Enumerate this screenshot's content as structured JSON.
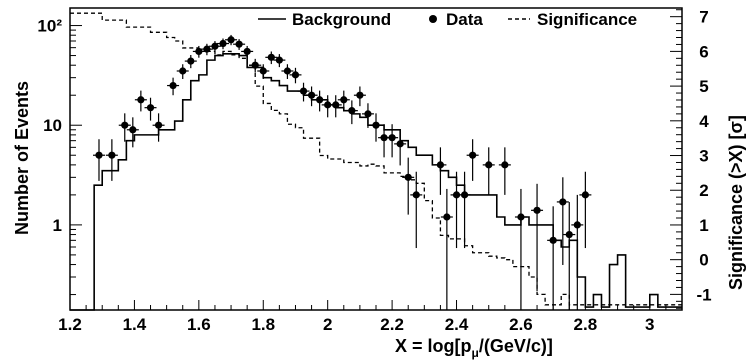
{
  "chart_data": {
    "type": "histogram",
    "title": "",
    "xlabel": "X = log[p",
    "xlabel_sub": "μ",
    "xlabel_tail": "/(GeV/c)]",
    "ylabel": "Number of Events",
    "ylabel_right": "Significance (>X) [σ]",
    "x_axis": {
      "min": 1.2,
      "max": 3.1,
      "ticks": [
        1.2,
        1.4,
        1.6,
        1.8,
        2,
        2.2,
        2.4,
        2.6,
        2.8,
        3
      ],
      "tick_labels": [
        "1.2",
        "1.4",
        "1.6",
        "1.8",
        "2",
        "2.2",
        "2.4",
        "2.6",
        "2.8",
        "3"
      ]
    },
    "y_axis": {
      "scale": "log",
      "min": 0.14,
      "max": 150,
      "ticks": [
        1,
        10,
        100
      ],
      "tick_labels": [
        "1",
        "10",
        "10²"
      ]
    },
    "y_axis_right": {
      "min": -1.45,
      "max": 7.25,
      "ticks": [
        -1,
        0,
        1,
        2,
        3,
        4,
        5,
        6,
        7
      ],
      "tick_labels": [
        "-1",
        "0",
        "1",
        "2",
        "3",
        "4",
        "5",
        "6",
        "7"
      ]
    },
    "legend": {
      "placement": "top-right",
      "entries": [
        {
          "label": "Background",
          "style": "solid-line"
        },
        {
          "label": "Data",
          "style": "marker"
        },
        {
          "label": "Significance",
          "style": "dashed-line"
        }
      ]
    },
    "bin_width": 0.025,
    "series": [
      {
        "name": "Background",
        "style": "solid-step",
        "x_left_edges": [
          1.2,
          1.225,
          1.25,
          1.275,
          1.3,
          1.325,
          1.35,
          1.375,
          1.4,
          1.425,
          1.45,
          1.475,
          1.5,
          1.525,
          1.55,
          1.575,
          1.6,
          1.625,
          1.65,
          1.675,
          1.7,
          1.725,
          1.75,
          1.775,
          1.8,
          1.825,
          1.85,
          1.875,
          1.9,
          1.925,
          1.95,
          1.975,
          2.0,
          2.025,
          2.05,
          2.075,
          2.1,
          2.125,
          2.15,
          2.175,
          2.2,
          2.225,
          2.25,
          2.275,
          2.3,
          2.325,
          2.35,
          2.375,
          2.4,
          2.425,
          2.45,
          2.475,
          2.5,
          2.525,
          2.55,
          2.575,
          2.6,
          2.625,
          2.65,
          2.675,
          2.7,
          2.725,
          2.75,
          2.775,
          2.8,
          2.825,
          2.85,
          2.875,
          2.9,
          2.925,
          2.95,
          2.975,
          3.0,
          3.025,
          3.05,
          3.075
        ],
        "values": [
          0,
          0,
          0,
          2.5,
          3.5,
          3.5,
          4.5,
          7,
          8,
          8,
          8,
          9,
          9,
          11,
          18,
          28,
          32,
          45,
          50,
          52,
          52,
          50,
          38,
          38,
          30,
          28,
          25,
          22,
          22,
          20,
          18,
          18,
          16,
          15,
          14,
          13,
          12,
          10,
          10,
          9,
          9,
          7,
          6,
          5,
          5,
          4,
          3.5,
          3,
          2.5,
          2,
          2,
          2,
          2,
          1.2,
          1,
          1,
          1.2,
          1,
          1,
          1,
          0.7,
          0.6,
          0.7,
          0.3,
          0.15,
          0.2,
          0.15,
          0.4,
          0.5,
          0.15,
          0.15,
          0.15,
          0.2,
          0.15,
          0.15,
          0.15
        ]
      },
      {
        "name": "Data",
        "style": "markers",
        "x": [
          1.29,
          1.33,
          1.37,
          1.395,
          1.42,
          1.45,
          1.475,
          1.52,
          1.55,
          1.575,
          1.6,
          1.625,
          1.65,
          1.675,
          1.7,
          1.725,
          1.75,
          1.775,
          1.8,
          1.825,
          1.85,
          1.875,
          1.9,
          1.925,
          1.95,
          1.975,
          2.0,
          2.025,
          2.05,
          2.075,
          2.1,
          2.125,
          2.15,
          2.175,
          2.2,
          2.225,
          2.25,
          2.275,
          2.35,
          2.37,
          2.4,
          2.425,
          2.45,
          2.5,
          2.55,
          2.6,
          2.65,
          2.7,
          2.73,
          2.75,
          2.775,
          2.8
        ],
        "y": [
          5,
          5,
          10,
          9,
          18,
          15,
          10,
          25,
          35,
          44,
          55,
          58,
          62,
          66,
          72,
          65,
          55,
          40,
          35,
          48,
          45,
          35,
          32,
          22,
          20,
          18,
          16,
          16,
          18,
          14,
          20,
          13,
          10,
          7.5,
          7.5,
          6.5,
          3,
          2,
          4,
          1.2,
          2,
          2,
          5,
          4,
          4,
          1.2,
          1.4,
          0.7,
          1.7,
          0.8,
          1,
          2
        ]
      },
      {
        "name": "Significance",
        "style": "dashed-step",
        "x_left_edges": [
          1.2,
          1.275,
          1.3,
          1.325,
          1.35,
          1.375,
          1.4,
          1.425,
          1.45,
          1.475,
          1.5,
          1.525,
          1.55,
          1.575,
          1.6,
          1.625,
          1.65,
          1.675,
          1.7,
          1.725,
          1.75,
          1.775,
          1.8,
          1.825,
          1.85,
          1.875,
          1.9,
          1.925,
          1.95,
          1.975,
          2.0,
          2.025,
          2.05,
          2.075,
          2.1,
          2.125,
          2.15,
          2.175,
          2.2,
          2.225,
          2.25,
          2.275,
          2.3,
          2.325,
          2.35,
          2.375,
          2.4,
          2.425,
          2.45,
          2.475,
          2.5,
          2.525,
          2.55,
          2.575,
          2.6,
          2.625,
          2.65,
          2.675,
          2.7,
          2.725,
          2.75,
          2.775,
          2.8,
          2.825,
          2.85,
          2.875,
          2.9,
          2.925,
          2.95,
          2.975,
          3.0,
          3.025,
          3.05,
          3.075
        ],
        "values": [
          7.1,
          7.1,
          6.9,
          6.9,
          6.9,
          6.7,
          6.7,
          6.7,
          6.55,
          6.55,
          6.4,
          6.3,
          6.1,
          6.1,
          6.0,
          6.0,
          5.9,
          6.0,
          5.9,
          5.8,
          5.6,
          5.0,
          4.5,
          4.3,
          4.2,
          3.9,
          3.8,
          3.5,
          3.5,
          3.0,
          2.9,
          2.9,
          2.8,
          2.8,
          2.7,
          2.75,
          2.7,
          2.5,
          2.5,
          2.4,
          2.3,
          2.2,
          1.7,
          1.2,
          0.7,
          0.6,
          0.6,
          0.4,
          0.2,
          0.2,
          0.1,
          0.05,
          0,
          -0.2,
          -0.2,
          -0.5,
          -1,
          -1.3,
          -1.3,
          -1.0,
          -1.3,
          -1.3,
          -1.3,
          -1.3,
          -1.3,
          -1.3,
          -1.3,
          -1.3,
          -1.3,
          -1.3,
          -1.3,
          -1.3,
          -1.3,
          -1.3
        ]
      }
    ]
  }
}
